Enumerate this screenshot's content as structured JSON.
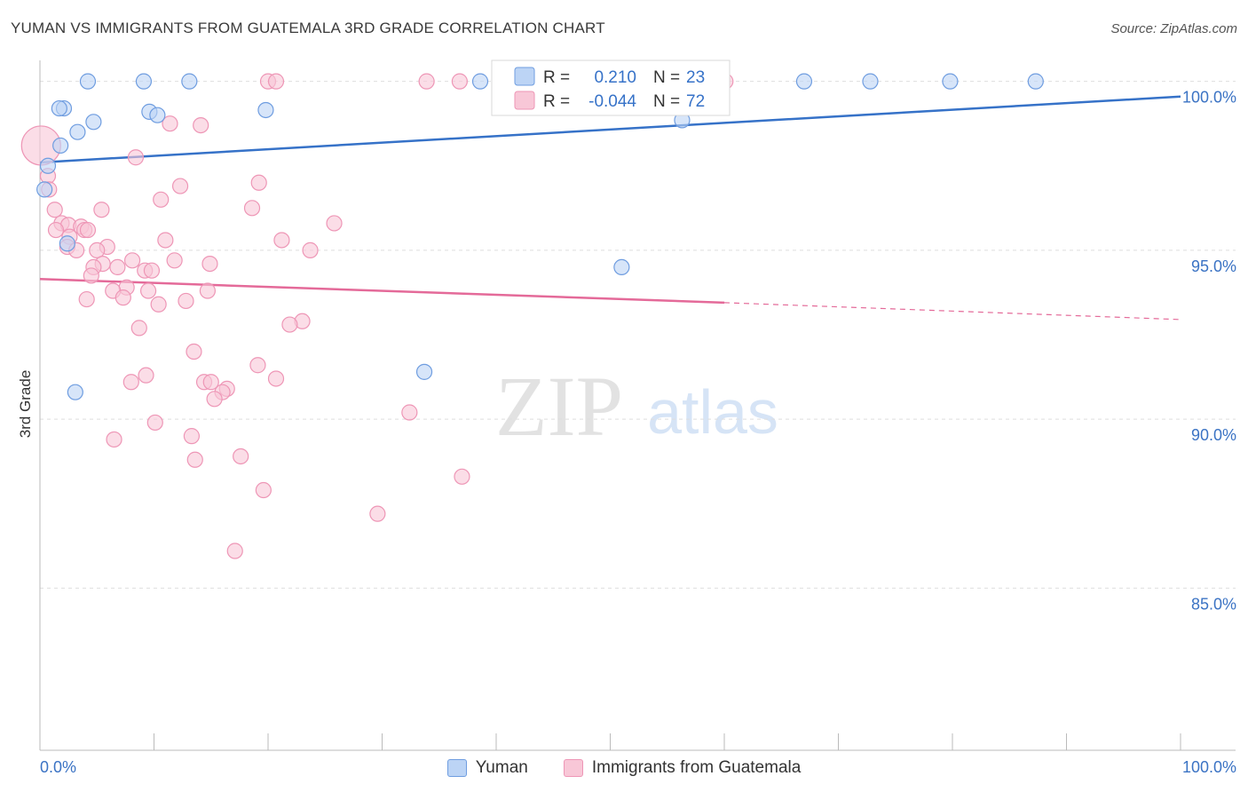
{
  "header": {
    "title": "YUMAN VS IMMIGRANTS FROM GUATEMALA 3RD GRADE CORRELATION CHART",
    "source": "Source: ZipAtlas.com"
  },
  "watermark": {
    "zip": "ZIP",
    "atlas": "atlas"
  },
  "colors": {
    "blue": "#3672c8",
    "blue_fill": "#bcd4f5",
    "blue_stroke": "#6f9de0",
    "pink": "#e46a99",
    "pink_fill": "#f8c7d7",
    "pink_stroke": "#ee96b6",
    "tick_label": "#3b73c4",
    "grid": "#dedede"
  },
  "legend": {
    "rows": [
      {
        "r_label": "R =",
        "r_value": "0.210",
        "n_label": "N =",
        "n_value": "23"
      },
      {
        "r_label": "R =",
        "r_value": "-0.044",
        "n_label": "N =",
        "n_value": "72"
      }
    ]
  },
  "bottom_legend": {
    "series_a": "Yuman",
    "series_b": "Immigrants from Guatemala"
  },
  "chart_data": {
    "type": "scatter",
    "title": "YUMAN VS IMMIGRANTS FROM GUATEMALA 3RD GRADE CORRELATION CHART",
    "xlabel": "",
    "ylabel": "3rd Grade",
    "xlim": [
      0,
      100
    ],
    "ylim": [
      80.2,
      100.7
    ],
    "x_tick_labels": [
      "0.0%",
      "100.0%"
    ],
    "y_ticks": [
      85,
      90,
      95,
      100
    ],
    "y_tick_labels": [
      "85.0%",
      "90.0%",
      "95.0%",
      "100.0%"
    ],
    "grid": "horizontal dashed",
    "series": [
      {
        "name": "Yuman",
        "color": "#3672c8",
        "points": [
          [
            4.2,
            100.0
          ],
          [
            9.1,
            100.0
          ],
          [
            13.1,
            100.0
          ],
          [
            38.6,
            100.0
          ],
          [
            67.0,
            100.0
          ],
          [
            72.8,
            100.0
          ],
          [
            79.8,
            100.0
          ],
          [
            87.3,
            100.0
          ],
          [
            2.1,
            99.2
          ],
          [
            1.7,
            99.2
          ],
          [
            9.6,
            99.1
          ],
          [
            10.3,
            99.0
          ],
          [
            19.8,
            99.15
          ],
          [
            4.7,
            98.8
          ],
          [
            3.3,
            98.5
          ],
          [
            56.3,
            98.85
          ],
          [
            1.8,
            98.1
          ],
          [
            0.7,
            97.5
          ],
          [
            0.4,
            96.8
          ],
          [
            2.4,
            95.2
          ],
          [
            51.0,
            94.5
          ],
          [
            33.7,
            91.4
          ],
          [
            3.1,
            90.8
          ]
        ],
        "trend": {
          "x": [
            0,
            100
          ],
          "y": [
            97.6,
            99.55
          ]
        }
      },
      {
        "name": "Immigrants from Guatemala",
        "color": "#e46a99",
        "points": [
          [
            0.1,
            98.1
          ],
          [
            0.7,
            97.2
          ],
          [
            0.8,
            96.8
          ],
          [
            11.4,
            98.75
          ],
          [
            14.1,
            98.7
          ],
          [
            8.4,
            97.75
          ],
          [
            19.2,
            97.0
          ],
          [
            12.3,
            96.9
          ],
          [
            10.6,
            96.5
          ],
          [
            18.6,
            96.25
          ],
          [
            5.4,
            96.2
          ],
          [
            1.3,
            96.2
          ],
          [
            25.8,
            95.8
          ],
          [
            1.9,
            95.8
          ],
          [
            2.5,
            95.75
          ],
          [
            3.6,
            95.7
          ],
          [
            3.9,
            95.6
          ],
          [
            1.4,
            95.6
          ],
          [
            4.2,
            95.6
          ],
          [
            2.6,
            95.4
          ],
          [
            11.0,
            95.3
          ],
          [
            21.2,
            95.3
          ],
          [
            2.4,
            95.1
          ],
          [
            5.9,
            95.1
          ],
          [
            3.2,
            95.0
          ],
          [
            5.0,
            95.0
          ],
          [
            23.7,
            95.0
          ],
          [
            8.1,
            94.7
          ],
          [
            11.8,
            94.7
          ],
          [
            5.5,
            94.6
          ],
          [
            14.9,
            94.6
          ],
          [
            4.7,
            94.5
          ],
          [
            6.8,
            94.5
          ],
          [
            9.2,
            94.4
          ],
          [
            9.8,
            94.4
          ],
          [
            4.5,
            94.25
          ],
          [
            7.6,
            93.9
          ],
          [
            9.5,
            93.8
          ],
          [
            6.4,
            93.8
          ],
          [
            14.7,
            93.8
          ],
          [
            7.3,
            93.6
          ],
          [
            4.1,
            93.55
          ],
          [
            12.8,
            93.5
          ],
          [
            10.4,
            93.4
          ],
          [
            23.0,
            92.9
          ],
          [
            21.9,
            92.8
          ],
          [
            8.7,
            92.7
          ],
          [
            13.5,
            92.0
          ],
          [
            19.1,
            91.6
          ],
          [
            9.3,
            91.3
          ],
          [
            20.7,
            91.2
          ],
          [
            8.0,
            91.1
          ],
          [
            14.4,
            91.1
          ],
          [
            15.0,
            91.1
          ],
          [
            16.4,
            90.9
          ],
          [
            16.0,
            90.8
          ],
          [
            15.3,
            90.6
          ],
          [
            32.4,
            90.2
          ],
          [
            10.1,
            89.9
          ],
          [
            13.3,
            89.5
          ],
          [
            6.5,
            89.4
          ],
          [
            17.6,
            88.9
          ],
          [
            13.6,
            88.8
          ],
          [
            37.0,
            88.3
          ],
          [
            19.6,
            87.9
          ],
          [
            29.6,
            87.2
          ],
          [
            17.1,
            86.1
          ],
          [
            20.0,
            100.0
          ],
          [
            20.7,
            100.0
          ],
          [
            33.9,
            100.0
          ],
          [
            36.8,
            100.0
          ],
          [
            60.1,
            100.0
          ]
        ],
        "trend": {
          "x": [
            0,
            60
          ],
          "y": [
            94.15,
            93.45
          ]
        },
        "trend_extension": {
          "x": [
            60,
            100
          ],
          "y": [
            93.45,
            92.95
          ]
        }
      }
    ]
  }
}
